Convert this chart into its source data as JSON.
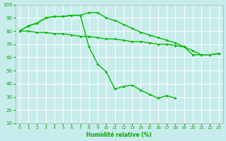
{
  "line_color": "#00bb00",
  "marker": "D",
  "marker_size": 2.0,
  "xlim": [
    -0.5,
    23.5
  ],
  "ylim": [
    10,
    100
  ],
  "yticks": [
    10,
    20,
    30,
    40,
    50,
    60,
    70,
    80,
    90,
    100
  ],
  "xticks": [
    0,
    1,
    2,
    3,
    4,
    5,
    6,
    7,
    8,
    9,
    10,
    11,
    12,
    13,
    14,
    15,
    16,
    17,
    18,
    19,
    20,
    21,
    22,
    23
  ],
  "xlabel": "Humidité relative (%)",
  "background_color": "#c8ecec",
  "grid_color": "#ffffff",
  "line_width": 1.0,
  "tick_color": "#00aa00",
  "label_color": "#00aa00",
  "line1_x": [
    0,
    1,
    2,
    3,
    4,
    5,
    6,
    7,
    8,
    9,
    10,
    11,
    12,
    13,
    14,
    15,
    16,
    17,
    18,
    19,
    20,
    21,
    22,
    23
  ],
  "line1_y": [
    80,
    84,
    86,
    90,
    91,
    91,
    92,
    92,
    94,
    94,
    90,
    88,
    85,
    82,
    79,
    77,
    75,
    73,
    71,
    68,
    65,
    62,
    62,
    63
  ],
  "line2_x": [
    0,
    1,
    2,
    3,
    4,
    5,
    6,
    7,
    8,
    9,
    10,
    11,
    12,
    13,
    14,
    15,
    16,
    17,
    18
  ],
  "line2_y": [
    80,
    84,
    86,
    90,
    91,
    91,
    92,
    92,
    68,
    55,
    49,
    36,
    38,
    39,
    35,
    32,
    29,
    31,
    29
  ],
  "line3_x": [
    0,
    1,
    2,
    3,
    4,
    5,
    6,
    7,
    8,
    9,
    10,
    11,
    12,
    13,
    14,
    15,
    16,
    17,
    18,
    19,
    20,
    21,
    22,
    23
  ],
  "line3_y": [
    80,
    80,
    79,
    79,
    78,
    78,
    77,
    76,
    76,
    75,
    74,
    74,
    73,
    72,
    72,
    71,
    70,
    70,
    69,
    68,
    62,
    62,
    62,
    63
  ]
}
